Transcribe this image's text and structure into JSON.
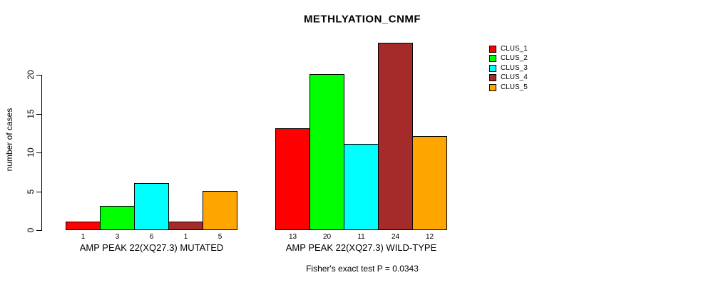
{
  "chart_data": {
    "type": "bar",
    "title": "METHLYATION_CNMF",
    "xlabel": "",
    "ylabel": "number of cases",
    "yticks": [
      0,
      5,
      10,
      15,
      20
    ],
    "ylim": [
      0,
      24
    ],
    "grid": false,
    "legend_position": "right",
    "legend_labels": [
      "CLUS_1",
      "CLUS_2",
      "CLUS_3",
      "CLUS_4",
      "CLUS_5"
    ],
    "series_colors": [
      "#FF0000",
      "#00FF00",
      "#00FFFF",
      "#A52A2A",
      "#FFA500"
    ],
    "groups": [
      {
        "label": "AMP PEAK 22(XQ27.3) MUTATED",
        "values": [
          1,
          3,
          6,
          1,
          5
        ]
      },
      {
        "label": "AMP PEAK 22(XQ27.3) WILD-TYPE",
        "values": [
          13,
          20,
          11,
          24,
          12
        ]
      }
    ],
    "annotation": "Fisher's exact test P = 0.0343"
  }
}
